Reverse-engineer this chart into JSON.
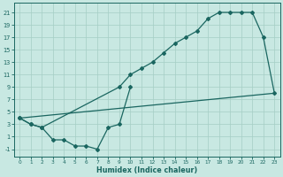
{
  "xlabel": "Humidex (Indice chaleur)",
  "bg_color": "#c8e8e2",
  "grid_color": "#a5cec5",
  "line_color": "#1a6660",
  "xlim": [
    -0.5,
    23.5
  ],
  "ylim": [
    -2.2,
    22.5
  ],
  "xticks": [
    0,
    1,
    2,
    3,
    4,
    5,
    6,
    7,
    8,
    9,
    10,
    11,
    12,
    13,
    14,
    15,
    16,
    17,
    18,
    19,
    20,
    21,
    22,
    23
  ],
  "yticks": [
    -1,
    1,
    3,
    5,
    7,
    9,
    11,
    13,
    15,
    17,
    19,
    21
  ],
  "line1_x": [
    0,
    1,
    2,
    9,
    10,
    11,
    12,
    13,
    14,
    15,
    16,
    17,
    18,
    19,
    20,
    21,
    22,
    23
  ],
  "line1_y": [
    4,
    3,
    2.5,
    9,
    11,
    12,
    13,
    14.5,
    16,
    17,
    18,
    20,
    21,
    21,
    21,
    21,
    17,
    8
  ],
  "line2_x": [
    0,
    23
  ],
  "line2_y": [
    4,
    8
  ],
  "line3_x": [
    0,
    1,
    2,
    3,
    4,
    5,
    6,
    7,
    8,
    9,
    10
  ],
  "line3_y": [
    4,
    3,
    2.5,
    0.5,
    0.5,
    -0.5,
    -0.5,
    -1,
    2.5,
    3,
    9
  ]
}
